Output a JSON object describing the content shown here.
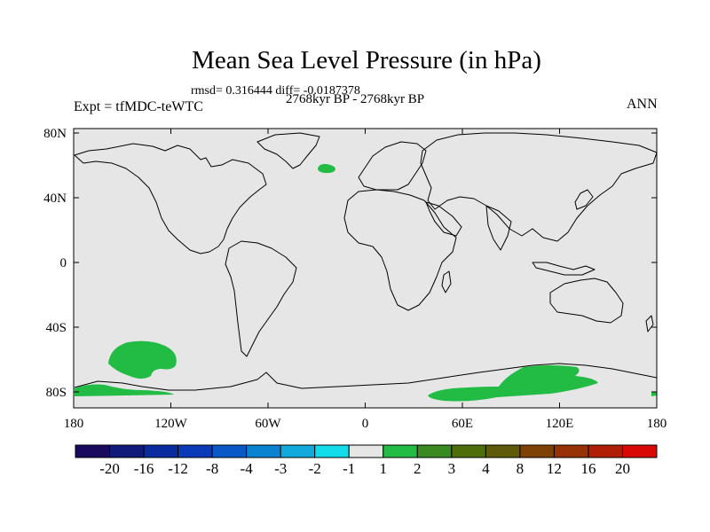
{
  "title": "Mean Sea Level Pressure (in hPa)",
  "subtitle": "rmsd= 0.316444 diff= -0.0187378",
  "left_label": "Expt = tfMDC-teWTC",
  "center_label": "2768kyr BP - 2768kyr BP",
  "right_label": "ANN",
  "map": {
    "lat_labels": [
      "80N",
      "40N",
      "0",
      "40S",
      "80S"
    ],
    "lon_labels": [
      "180",
      "120W",
      "60W",
      "0",
      "60E",
      "120E",
      "180"
    ],
    "background_color": "#e6e6e6",
    "anomaly_color": "#22bb44"
  },
  "colorbar": {
    "colors": [
      "#1a0a5e",
      "#101a78",
      "#0a2aa0",
      "#0a3ab8",
      "#0a58c8",
      "#0a82d2",
      "#12aadc",
      "#12dcea",
      "#e6e6e6",
      "#22bb44",
      "#3a8a22",
      "#4e6e0a",
      "#5e5a0a",
      "#7e4206",
      "#963206",
      "#b01e06",
      "#d80a06"
    ],
    "labels": [
      "-20",
      "-16",
      "-12",
      "-8",
      "-4",
      "-3",
      "-2",
      "-1",
      "1",
      "2",
      "3",
      "4",
      "8",
      "12",
      "16",
      "20"
    ]
  }
}
